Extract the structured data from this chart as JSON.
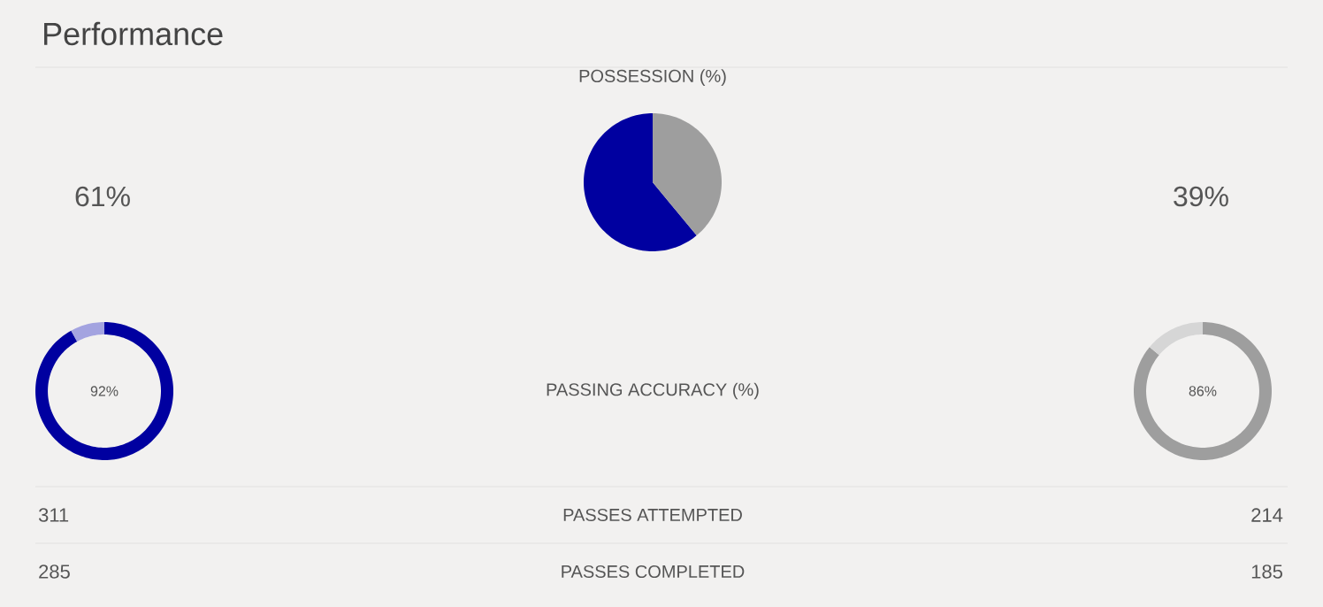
{
  "chart_data": [
    {
      "type": "other",
      "title": "Performance",
      "annotations": [
        "61%",
        "39%",
        "PASSING ACCURACY (%)",
        "311",
        "PASSES ATTEMPTED",
        "214",
        "285",
        "PASSES COMPLETED",
        "185"
      ]
    },
    {
      "type": "pie",
      "title": "POSSESSION (%)",
      "categories": [
        null,
        null
      ],
      "values": [
        61,
        39
      ],
      "colors": [
        "#0000a0",
        "#9e9e9e"
      ]
    },
    {
      "type": "donut",
      "categories": [
        null,
        null
      ],
      "values": [
        92,
        8
      ],
      "colors": [
        "#0000a0",
        "#a3a3e0"
      ],
      "value_labels": [
        "92%",
        null
      ]
    },
    {
      "type": "donut",
      "categories": [
        null,
        null
      ],
      "values": [
        86,
        14
      ],
      "colors": [
        "#9e9e9e",
        "#d6d6d6"
      ],
      "value_labels": [
        "86%",
        null
      ]
    }
  ]
}
